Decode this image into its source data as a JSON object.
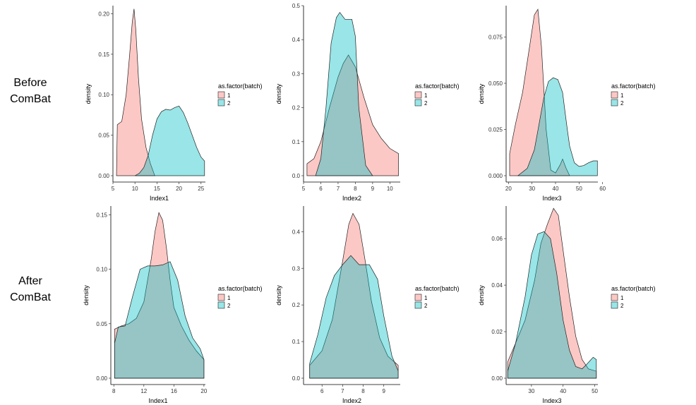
{
  "row_labels": [
    [
      "Before",
      "ComBat"
    ],
    [
      "After",
      "ComBat"
    ]
  ],
  "legend": {
    "title": "as.factor(batch)",
    "labels": [
      "1",
      "2"
    ]
  },
  "colors": {
    "batch1": "#F8766D",
    "batch2": "#00BFC4"
  },
  "chart_data": [
    {
      "type": "area",
      "row": "Before ComBat",
      "xlabel": "Index1",
      "ylabel": "density",
      "xlim": [
        5,
        26
      ],
      "ylim": [
        0,
        0.21
      ],
      "xticks": [
        5,
        10,
        15,
        20,
        25
      ],
      "yticks": [
        0.0,
        0.05,
        0.1,
        0.15,
        0.2
      ],
      "xtick_labels": [
        "5",
        "10",
        "15",
        "20",
        "25"
      ],
      "ytick_labels": [
        "0.00",
        "0.05",
        "0.10",
        "0.15",
        "0.20"
      ],
      "series": [
        {
          "name": "1",
          "x": [
            5.8,
            6.0,
            7.0,
            8.0,
            8.8,
            9.4,
            9.8,
            10.2,
            10.8,
            11.5,
            12.5,
            13.5,
            14.5
          ],
          "y": [
            0.0,
            0.063,
            0.067,
            0.1,
            0.15,
            0.19,
            0.206,
            0.18,
            0.12,
            0.07,
            0.035,
            0.015,
            0.0
          ]
        },
        {
          "name": "2",
          "x": [
            10.0,
            11.0,
            12.0,
            13.0,
            14.0,
            15.0,
            16.0,
            17.0,
            18.0,
            19.0,
            20.0,
            21.0,
            22.0,
            23.0,
            24.0,
            25.0,
            25.8,
            25.8
          ],
          "y": [
            0.0,
            0.003,
            0.01,
            0.025,
            0.05,
            0.07,
            0.079,
            0.082,
            0.081,
            0.084,
            0.086,
            0.078,
            0.065,
            0.05,
            0.035,
            0.023,
            0.018,
            0.0
          ]
        }
      ]
    },
    {
      "type": "area",
      "row": "Before ComBat",
      "xlabel": "Index2",
      "ylabel": "density",
      "xlim": [
        5,
        10.6
      ],
      "ylim": [
        0,
        0.5
      ],
      "xticks": [
        5,
        6,
        7,
        8,
        9,
        10
      ],
      "yticks": [
        0.0,
        0.1,
        0.2,
        0.3,
        0.4,
        0.5
      ],
      "xtick_labels": [
        "5",
        "6",
        "7",
        "8",
        "9",
        "10"
      ],
      "ytick_labels": [
        "0.0",
        "0.1",
        "0.2",
        "0.3",
        "0.4",
        "0.5"
      ],
      "series": [
        {
          "name": "1",
          "x": [
            5.2,
            5.2,
            5.6,
            6.0,
            6.5,
            7.0,
            7.3,
            7.6,
            8.0,
            8.5,
            9.0,
            9.5,
            10.0,
            10.5,
            10.5
          ],
          "y": [
            0.0,
            0.035,
            0.05,
            0.1,
            0.2,
            0.29,
            0.33,
            0.355,
            0.32,
            0.23,
            0.15,
            0.11,
            0.08,
            0.065,
            0.0
          ]
        },
        {
          "name": "2",
          "x": [
            5.7,
            6.0,
            6.3,
            6.6,
            6.9,
            7.1,
            7.4,
            7.8,
            8.0,
            8.2,
            8.6,
            9.0
          ],
          "y": [
            0.0,
            0.05,
            0.2,
            0.39,
            0.465,
            0.48,
            0.46,
            0.46,
            0.41,
            0.2,
            0.03,
            0.0
          ]
        }
      ]
    },
    {
      "type": "area",
      "row": "Before ComBat",
      "xlabel": "Index3",
      "ylabel": "density",
      "xlim": [
        19,
        58
      ],
      "ylim": [
        0,
        0.092
      ],
      "xticks": [
        20,
        30,
        40,
        50,
        60
      ],
      "yticks": [
        0.0,
        0.025,
        0.05,
        0.075
      ],
      "xtick_labels": [
        "20",
        "30",
        "40",
        "50",
        "60"
      ],
      "ytick_labels": [
        "0.000",
        "0.025",
        "0.050",
        "0.075"
      ],
      "series": [
        {
          "name": "1",
          "x": [
            20.5,
            20.5,
            23.0,
            26.0,
            29.0,
            31.0,
            32.5,
            34.0,
            36.0,
            38.0,
            40.0,
            42.0,
            43.0,
            44.5,
            46.0
          ],
          "y": [
            0.0,
            0.012,
            0.028,
            0.045,
            0.07,
            0.087,
            0.09,
            0.07,
            0.025,
            0.003,
            0.0015,
            0.006,
            0.009,
            0.004,
            0.0
          ]
        },
        {
          "name": "2",
          "x": [
            24.0,
            28.0,
            31.0,
            33.0,
            35.0,
            37.0,
            39.0,
            41.0,
            43.0,
            44.0,
            45.0,
            46.0,
            48.0,
            50.0,
            52.0,
            54.0,
            56.0,
            57.8,
            57.8
          ],
          "y": [
            0.0,
            0.004,
            0.014,
            0.028,
            0.042,
            0.051,
            0.053,
            0.052,
            0.045,
            0.035,
            0.025,
            0.016,
            0.007,
            0.005,
            0.0055,
            0.007,
            0.008,
            0.008,
            0.0
          ]
        }
      ]
    },
    {
      "type": "area",
      "row": "After ComBat",
      "xlabel": "Index1",
      "ylabel": "density",
      "xlim": [
        7.6,
        20.2
      ],
      "ylim": [
        0,
        0.158
      ],
      "xticks": [
        8,
        12,
        16,
        20
      ],
      "yticks": [
        0.0,
        0.05,
        0.1,
        0.15
      ],
      "xtick_labels": [
        "8",
        "12",
        "16",
        "20"
      ],
      "ytick_labels": [
        "0.00",
        "0.05",
        "0.10",
        "0.15"
      ],
      "series": [
        {
          "name": "1",
          "x": [
            8.1,
            8.1,
            9.0,
            10.0,
            11.0,
            12.0,
            13.0,
            13.5,
            14.0,
            14.5,
            15.0,
            15.5,
            16.0,
            17.0,
            18.0,
            19.0,
            20.0,
            20.0
          ],
          "y": [
            0.0,
            0.045,
            0.048,
            0.05,
            0.055,
            0.07,
            0.11,
            0.135,
            0.152,
            0.145,
            0.12,
            0.09,
            0.065,
            0.048,
            0.035,
            0.025,
            0.017,
            0.0
          ]
        },
        {
          "name": "2",
          "x": [
            8.1,
            8.1,
            8.6,
            9.5,
            10.5,
            11.5,
            12.5,
            13.5,
            14.5,
            15.5,
            16.5,
            17.5,
            18.5,
            19.5,
            20.0,
            20.0
          ],
          "y": [
            0.0,
            0.032,
            0.047,
            0.048,
            0.075,
            0.1,
            0.103,
            0.103,
            0.104,
            0.107,
            0.09,
            0.057,
            0.037,
            0.027,
            0.017,
            0.0
          ]
        }
      ]
    },
    {
      "type": "area",
      "row": "After ComBat",
      "xlabel": "Index2",
      "ylabel": "density",
      "xlim": [
        5.1,
        9.8
      ],
      "ylim": [
        0,
        0.47
      ],
      "xticks": [
        6,
        7,
        8,
        9
      ],
      "yticks": [
        0.0,
        0.1,
        0.2,
        0.3,
        0.4
      ],
      "xtick_labels": [
        "6",
        "7",
        "8",
        "9"
      ],
      "ytick_labels": [
        "0.0",
        "0.1",
        "0.2",
        "0.3",
        "0.4"
      ],
      "series": [
        {
          "name": "1",
          "x": [
            5.4,
            5.4,
            6.0,
            6.5,
            7.0,
            7.3,
            7.5,
            7.8,
            8.1,
            8.4,
            8.8,
            9.2,
            9.6,
            9.7,
            9.7
          ],
          "y": [
            0.0,
            0.035,
            0.075,
            0.16,
            0.32,
            0.42,
            0.45,
            0.42,
            0.32,
            0.21,
            0.11,
            0.06,
            0.04,
            0.035,
            0.0
          ]
        },
        {
          "name": "2",
          "x": [
            5.4,
            5.4,
            5.8,
            6.2,
            6.6,
            7.0,
            7.4,
            7.8,
            8.3,
            8.7,
            9.0,
            9.4,
            9.7,
            9.7
          ],
          "y": [
            0.0,
            0.04,
            0.12,
            0.22,
            0.28,
            0.31,
            0.335,
            0.31,
            0.31,
            0.27,
            0.17,
            0.06,
            0.02,
            0.0
          ]
        }
      ]
    },
    {
      "type": "area",
      "row": "After ComBat",
      "xlabel": "Index3",
      "ylabel": "density",
      "xlim": [
        22,
        51
      ],
      "ylim": [
        0,
        0.074
      ],
      "xticks": [
        30,
        40,
        50
      ],
      "yticks": [
        0.0,
        0.02,
        0.04,
        0.06
      ],
      "xtick_labels": [
        "30",
        "40",
        "50"
      ],
      "ytick_labels": [
        "0.00",
        "0.02",
        "0.04",
        "0.06"
      ],
      "series": [
        {
          "name": "1",
          "x": [
            22.5,
            22.5,
            25.0,
            28.0,
            31.0,
            33.0,
            35.0,
            37.0,
            38.5,
            40.0,
            42.0,
            44.0,
            46.0,
            48.0,
            50.5,
            50.5
          ],
          "y": [
            0.0,
            0.007,
            0.015,
            0.025,
            0.042,
            0.058,
            0.066,
            0.073,
            0.07,
            0.055,
            0.035,
            0.018,
            0.008,
            0.004,
            0.003,
            0.0
          ]
        },
        {
          "name": "2",
          "x": [
            22.5,
            22.5,
            25.0,
            28.0,
            30.0,
            32.0,
            34.0,
            36.0,
            38.0,
            40.0,
            42.0,
            44.0,
            46.0,
            47.5,
            49.5,
            50.5,
            50.5
          ],
          "y": [
            0.0,
            0.003,
            0.015,
            0.035,
            0.053,
            0.062,
            0.063,
            0.06,
            0.045,
            0.025,
            0.012,
            0.005,
            0.004,
            0.006,
            0.009,
            0.008,
            0.0
          ]
        }
      ]
    }
  ]
}
